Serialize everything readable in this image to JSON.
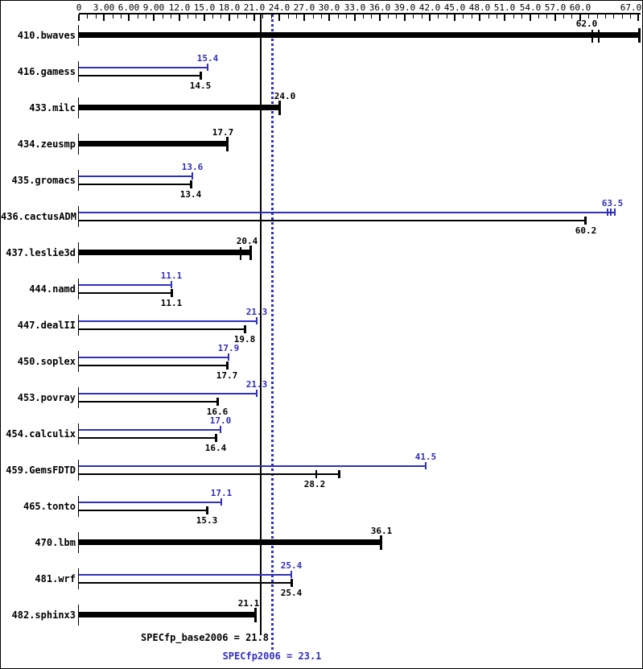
{
  "colors": {
    "base": "#000000",
    "peak": "#3030bb",
    "background": "#ffffff"
  },
  "footer": {
    "base_summary": "SPECfp_base2006 = 21.8",
    "peak_summary": "SPECfp2006 = 23.1"
  },
  "chart_data": {
    "type": "bar",
    "orientation": "horizontal",
    "legend": "none",
    "grid": "off",
    "x_axis": {
      "min": 0,
      "max": 67.5,
      "minor_step": 1,
      "major_ticks": [
        0,
        3,
        6,
        9,
        12,
        15,
        18,
        21,
        24,
        27,
        30,
        33,
        36,
        39,
        42,
        45,
        48,
        51,
        54,
        57,
        60,
        67
      ],
      "tick_labels": [
        {
          "v": 0,
          "text": "0"
        },
        {
          "v": 3,
          "text": "3.00"
        },
        {
          "v": 6,
          "text": "6.00"
        },
        {
          "v": 9,
          "text": "9.00"
        },
        {
          "v": 12,
          "text": "12.0"
        },
        {
          "v": 15,
          "text": "15.0"
        },
        {
          "v": 18,
          "text": "18.0"
        },
        {
          "v": 21,
          "text": "21.0"
        },
        {
          "v": 24,
          "text": "24.0"
        },
        {
          "v": 27,
          "text": "27.0"
        },
        {
          "v": 30,
          "text": "30.0"
        },
        {
          "v": 33,
          "text": "33.0"
        },
        {
          "v": 36,
          "text": "36.0"
        },
        {
          "v": 39,
          "text": "39.0"
        },
        {
          "v": 42,
          "text": "42.0"
        },
        {
          "v": 45,
          "text": "45.0"
        },
        {
          "v": 48,
          "text": "48.0"
        },
        {
          "v": 51,
          "text": "51.0"
        },
        {
          "v": 54,
          "text": "54.0"
        },
        {
          "v": 57,
          "text": "57.0"
        },
        {
          "v": 60,
          "text": "60.0"
        },
        {
          "v": 67,
          "lv": 66.1,
          "text": "67.0"
        }
      ]
    },
    "ref_lines": [
      {
        "name": "base-mean-line",
        "value": 21.8,
        "style": "solid",
        "color": "#000000"
      },
      {
        "name": "peak-mean-line",
        "value": 23.1,
        "style": "dotted",
        "color": "#3030bb"
      }
    ],
    "rows": [
      {
        "name": "410.bwaves",
        "bars": [
          {
            "kind": "base-thick",
            "value": 62.0,
            "label": "62.0",
            "bar_end": 67.1,
            "marks": [
              61.5,
              62.2
            ],
            "label_pos": 60.8
          }
        ]
      },
      {
        "name": "416.gamess",
        "bars": [
          {
            "kind": "peak",
            "value": 15.4,
            "label": "15.4"
          },
          {
            "kind": "base",
            "value": 14.5,
            "label": "14.5"
          }
        ]
      },
      {
        "name": "433.milc",
        "bars": [
          {
            "kind": "base-thick",
            "value": 24.0,
            "label": "24.0",
            "label_pos": 24.7
          }
        ]
      },
      {
        "name": "434.zeusmp",
        "bars": [
          {
            "kind": "base-thick",
            "value": 17.7,
            "label": "17.7",
            "label_pos": 17.2
          }
        ]
      },
      {
        "name": "435.gromacs",
        "bars": [
          {
            "kind": "peak",
            "value": 13.6,
            "label": "13.6"
          },
          {
            "kind": "base",
            "value": 13.4,
            "label": "13.4"
          }
        ]
      },
      {
        "name": "436.cactusADM",
        "bars": [
          {
            "kind": "peak",
            "value": 63.5,
            "label": "63.5",
            "bar_end": 64.2,
            "marks": [
              63.3,
              63.7
            ],
            "label_pos": 63.9
          },
          {
            "kind": "base",
            "value": 60.2,
            "label": "60.2",
            "bar_end": 60.6,
            "label_pos": 60.7
          }
        ]
      },
      {
        "name": "437.leslie3d",
        "bars": [
          {
            "kind": "base-thick",
            "value": 20.4,
            "label": "20.4",
            "bar_end": 20.5,
            "marks": [
              19.4
            ],
            "label_pos": 20.1
          }
        ]
      },
      {
        "name": "444.namd",
        "bars": [
          {
            "kind": "peak",
            "value": 11.1,
            "label": "11.1"
          },
          {
            "kind": "base",
            "value": 11.1,
            "label": "11.1"
          }
        ]
      },
      {
        "name": "447.dealII",
        "bars": [
          {
            "kind": "peak",
            "value": 21.3,
            "label": "21.3"
          },
          {
            "kind": "base",
            "value": 19.8,
            "label": "19.8"
          }
        ]
      },
      {
        "name": "450.soplex",
        "bars": [
          {
            "kind": "peak",
            "value": 17.9,
            "label": "17.9"
          },
          {
            "kind": "base",
            "value": 17.7,
            "label": "17.7"
          }
        ]
      },
      {
        "name": "453.povray",
        "bars": [
          {
            "kind": "peak",
            "value": 21.3,
            "label": "21.3"
          },
          {
            "kind": "base",
            "value": 16.6,
            "label": "16.6"
          }
        ]
      },
      {
        "name": "454.calculix",
        "bars": [
          {
            "kind": "peak",
            "value": 17.0,
            "label": "17.0"
          },
          {
            "kind": "base",
            "value": 16.4,
            "label": "16.4"
          }
        ]
      },
      {
        "name": "459.GemsFDTD",
        "bars": [
          {
            "kind": "peak",
            "value": 41.5,
            "label": "41.5"
          },
          {
            "kind": "base",
            "value": 28.2,
            "label": "28.2",
            "bar_end": 31.1,
            "marks": [
              28.4
            ]
          }
        ]
      },
      {
        "name": "465.tonto",
        "bars": [
          {
            "kind": "peak",
            "value": 17.1,
            "label": "17.1"
          },
          {
            "kind": "base",
            "value": 15.3,
            "label": "15.3"
          }
        ]
      },
      {
        "name": "470.lbm",
        "bars": [
          {
            "kind": "base-thick",
            "value": 36.1,
            "label": "36.1",
            "label_pos": 36.2
          }
        ]
      },
      {
        "name": "481.wrf",
        "bars": [
          {
            "kind": "peak",
            "value": 25.4,
            "label": "25.4"
          },
          {
            "kind": "base",
            "value": 25.4,
            "label": "25.4"
          }
        ]
      },
      {
        "name": "482.sphinx3",
        "bars": [
          {
            "kind": "base-thick",
            "value": 21.1,
            "label": "21.1",
            "label_pos": 20.3
          }
        ]
      }
    ],
    "summary": {
      "base": {
        "label": "SPECfp_base2006",
        "value": 21.8
      },
      "peak": {
        "label": "SPECfp2006",
        "value": 23.1
      }
    }
  }
}
